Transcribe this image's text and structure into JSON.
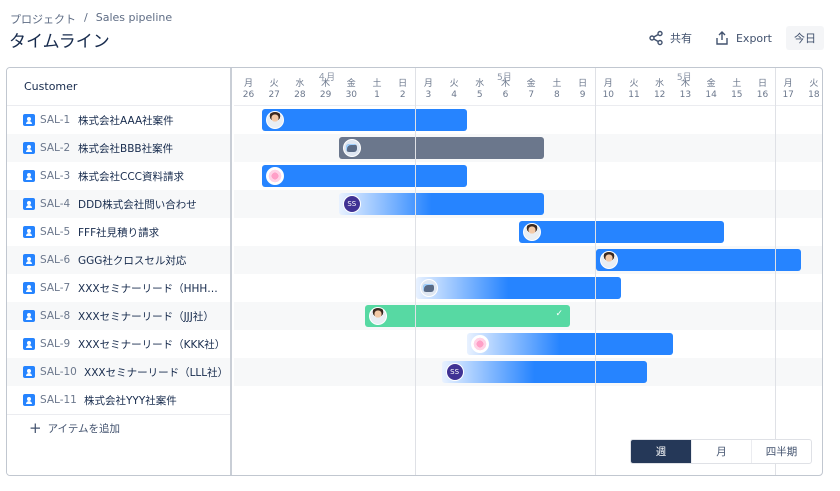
{
  "breadcrumb": {
    "project": "プロジェクト",
    "separator": "/",
    "board": "Sales pipeline"
  },
  "page_title": "タイムライン",
  "toolbar": {
    "share_label": "共有",
    "export_label": "Export",
    "today_label": "今日"
  },
  "table": {
    "column_header": "Customer",
    "add_item_label": "アイテムを追加"
  },
  "timeline": {
    "months": [
      {
        "label": "４月",
        "day_index": 3
      },
      {
        "label": "5月",
        "day_index": 10
      },
      {
        "label": "5月",
        "day_index": 17
      }
    ],
    "days": [
      {
        "w": "月",
        "d": "26"
      },
      {
        "w": "火",
        "d": "27"
      },
      {
        "w": "水",
        "d": "28"
      },
      {
        "w": "木",
        "d": "29"
      },
      {
        "w": "金",
        "d": "30"
      },
      {
        "w": "土",
        "d": "1"
      },
      {
        "w": "日",
        "d": "2"
      },
      {
        "w": "月",
        "d": "3"
      },
      {
        "w": "火",
        "d": "4"
      },
      {
        "w": "水",
        "d": "5"
      },
      {
        "w": "木",
        "d": "6"
      },
      {
        "w": "金",
        "d": "7"
      },
      {
        "w": "土",
        "d": "8"
      },
      {
        "w": "日",
        "d": "9"
      },
      {
        "w": "月",
        "d": "10"
      },
      {
        "w": "火",
        "d": "11"
      },
      {
        "w": "水",
        "d": "12"
      },
      {
        "w": "木",
        "d": "13"
      },
      {
        "w": "金",
        "d": "14"
      },
      {
        "w": "土",
        "d": "15"
      },
      {
        "w": "日",
        "d": "16"
      },
      {
        "w": "月",
        "d": "17"
      },
      {
        "w": "火",
        "d": "18"
      }
    ]
  },
  "issues": [
    {
      "key": "SAL-1",
      "title": "株式会社AAA社案件",
      "start": 1,
      "end": 9,
      "style": "blue",
      "avatar": "person"
    },
    {
      "key": "SAL-2",
      "title": "株式会社BBB社案件",
      "start": 4,
      "end": 12,
      "style": "grey",
      "avatar": "robot"
    },
    {
      "key": "SAL-3",
      "title": "株式会社CCC資料請求",
      "start": 1,
      "end": 9,
      "style": "blue",
      "avatar": "flower"
    },
    {
      "key": "SAL-4",
      "title": "DDD株式会社問い合わせ",
      "start": 4,
      "end": 12,
      "style": "fade",
      "avatar": "ss",
      "avatar_text": "SS"
    },
    {
      "key": "SAL-5",
      "title": "FFF社見積り請求",
      "start": 11,
      "end": 19,
      "style": "blue",
      "avatar": "person"
    },
    {
      "key": "SAL-6",
      "title": "GGG社クロスセル対応",
      "start": 14,
      "end": 22,
      "style": "blue",
      "avatar": "person"
    },
    {
      "key": "SAL-7",
      "title": "XXXセミナーリード（HHH社 ...",
      "start": 7,
      "end": 15,
      "style": "fade",
      "avatar": "robot"
    },
    {
      "key": "SAL-8",
      "title": "XXXセミナーリード（JJJ社）",
      "start": 5,
      "end": 13,
      "style": "green",
      "avatar": "person",
      "done": "✓"
    },
    {
      "key": "SAL-9",
      "title": "XXXセミナーリード（KKK社）",
      "start": 9,
      "end": 17,
      "style": "fade",
      "avatar": "flower"
    },
    {
      "key": "SAL-10",
      "title": "XXXセミナーリード（LLL社）",
      "start": 8,
      "end": 16,
      "style": "fade",
      "avatar": "ss",
      "avatar_text": "SS"
    },
    {
      "key": "SAL-11",
      "title": "株式会社YYY社案件",
      "start": null,
      "end": null,
      "style": "none",
      "avatar": ""
    }
  ],
  "scale": {
    "week": "週",
    "month": "月",
    "quarter": "四半期",
    "selected": "week"
  },
  "colors": {
    "bar_blue": "#2684ff",
    "bar_grey": "#6b778c",
    "bar_green": "#57d9a3",
    "switch_active": "#253858"
  }
}
